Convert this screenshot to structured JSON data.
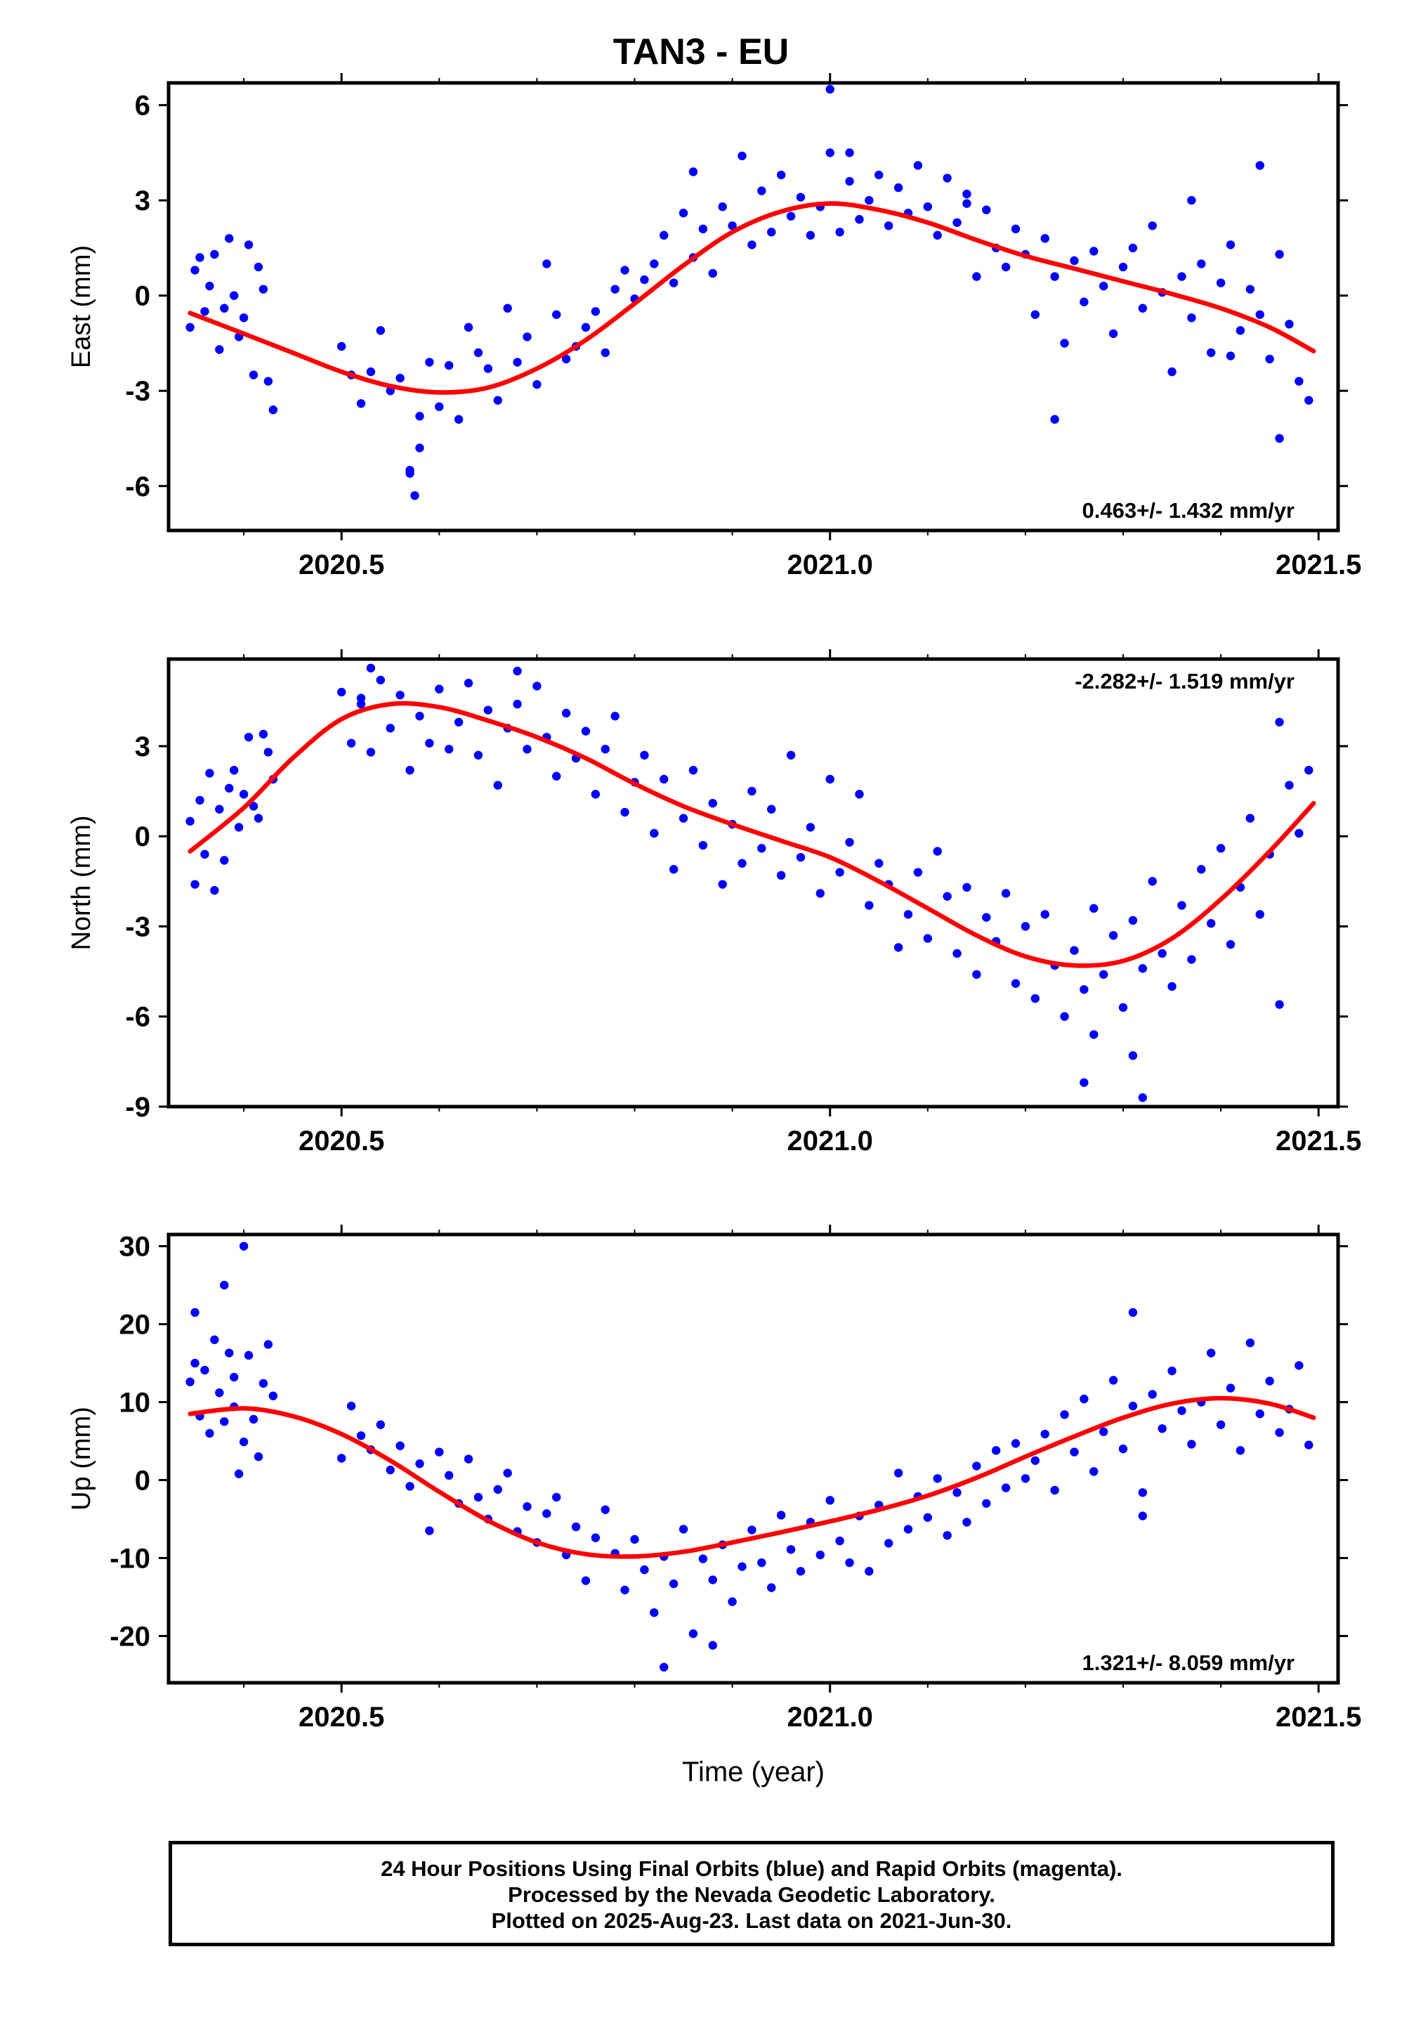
{
  "title": "TAN3 - EU",
  "footer": {
    "line1": "24 Hour Positions Using Final Orbits (blue) and Rapid Orbits (magenta).",
    "line2": "Processed by the Nevada Geodetic Laboratory.",
    "line3": "Plotted on 2025-Aug-23. Last data on 2021-Jun-30."
  },
  "colors": {
    "points": "#0000ff",
    "fit": "#ff0000",
    "frame": "#000000"
  },
  "chart_data": [
    {
      "type": "scatter",
      "ylabel": "East (mm)",
      "xlabel": "",
      "xlim": [
        2020.323,
        2021.52
      ],
      "ylim": [
        -7.4,
        6.7
      ],
      "xticks": [
        2020.5,
        2021.0,
        2021.5
      ],
      "xtick_labels": [
        "2020.5",
        "2021.0",
        "2021.5"
      ],
      "yticks": [
        6,
        3,
        0,
        -3,
        -6
      ],
      "ytick_labels": [
        "6",
        "3",
        "0",
        "-3",
        "-6"
      ],
      "annotation": "0.463+/- 1.432 mm/yr",
      "annotation_position": "bottom-right",
      "fit_x": [
        2020.345,
        2020.4,
        2020.45,
        2020.5,
        2020.55,
        2020.6,
        2020.65,
        2020.7,
        2020.75,
        2020.8,
        2020.85,
        2020.9,
        2020.95,
        2021.0,
        2021.05,
        2021.1,
        2021.15,
        2021.2,
        2021.25,
        2021.3,
        2021.35,
        2021.4,
        2021.45,
        2021.495
      ],
      "fit_y": [
        -0.55,
        -1.2,
        -1.8,
        -2.4,
        -2.85,
        -3.05,
        -2.9,
        -2.3,
        -1.4,
        -0.25,
        0.95,
        2.0,
        2.65,
        2.9,
        2.7,
        2.3,
        1.75,
        1.25,
        0.85,
        0.45,
        0.05,
        -0.4,
        -1.0,
        -1.75
      ],
      "series": [
        {
          "x": [
            2020.345,
            2020.35,
            2020.355,
            2020.36,
            2020.365,
            2020.37,
            2020.375,
            2020.38,
            2020.385,
            2020.39,
            2020.395,
            2020.4,
            2020.405,
            2020.41,
            2020.415,
            2020.42,
            2020.425,
            2020.43,
            2020.5,
            2020.51,
            2020.52,
            2020.53,
            2020.54,
            2020.55,
            2020.56,
            2020.57,
            2020.58,
            2020.59,
            2020.6,
            2020.61,
            2020.62,
            2020.63,
            2020.64,
            2020.65,
            2020.66,
            2020.67,
            2020.68,
            2020.69,
            2020.7,
            2020.71,
            2020.72,
            2020.73,
            2020.74,
            2020.75,
            2020.76,
            2020.77,
            2020.78,
            2020.79,
            2020.8,
            2020.81,
            2020.82,
            2020.83,
            2020.84,
            2020.85,
            2020.86,
            2020.87,
            2020.88,
            2020.89,
            2020.9,
            2020.91,
            2020.92,
            2020.93,
            2020.94,
            2020.95,
            2020.96,
            2020.97,
            2020.98,
            2020.99,
            2021.0,
            2021.01,
            2021.02,
            2021.03,
            2021.04,
            2021.05,
            2021.06,
            2021.07,
            2021.08,
            2021.09,
            2021.1,
            2021.11,
            2021.12,
            2021.13,
            2021.14,
            2021.15,
            2021.16,
            2021.17,
            2021.18,
            2021.19,
            2021.2,
            2021.21,
            2021.22,
            2021.23,
            2021.24,
            2021.25,
            2021.26,
            2021.27,
            2021.28,
            2021.29,
            2021.3,
            2021.31,
            2021.32,
            2021.33,
            2021.34,
            2021.35,
            2021.36,
            2021.37,
            2021.38,
            2021.39,
            2021.4,
            2021.41,
            2021.42,
            2021.43,
            2021.44,
            2021.45,
            2021.46,
            2021.47,
            2021.48,
            2021.49,
            2020.57,
            2020.575,
            2020.58,
            2020.86,
            2021.0,
            2021.02,
            2021.14,
            2021.23,
            2021.37,
            2021.41,
            2021.44,
            2021.46
          ],
          "y": [
            -1.0,
            0.8,
            1.2,
            -0.5,
            0.3,
            1.3,
            -1.7,
            -0.4,
            1.8,
            0.0,
            -1.3,
            -0.7,
            1.6,
            -2.5,
            0.9,
            0.2,
            -2.7,
            -3.6,
            -1.6,
            -2.5,
            -3.4,
            -2.4,
            -1.1,
            -3.0,
            -2.6,
            -5.5,
            -3.8,
            -2.1,
            -3.5,
            -2.2,
            -3.9,
            -1.0,
            -1.8,
            -2.3,
            -3.3,
            -0.4,
            -2.1,
            -1.3,
            -2.8,
            1.0,
            -0.6,
            -2.0,
            -1.6,
            -1.0,
            -0.5,
            -1.8,
            0.2,
            0.8,
            -0.1,
            0.5,
            1.0,
            1.9,
            0.4,
            2.6,
            1.2,
            2.1,
            0.7,
            2.8,
            2.2,
            4.4,
            1.6,
            3.3,
            2.0,
            3.8,
            2.5,
            3.1,
            1.9,
            2.8,
            4.5,
            2.0,
            3.6,
            2.4,
            3.0,
            3.8,
            2.2,
            3.4,
            2.6,
            4.1,
            2.8,
            1.9,
            3.7,
            2.3,
            3.2,
            0.6,
            2.7,
            1.5,
            0.9,
            2.1,
            1.3,
            -0.6,
            1.8,
            0.6,
            -1.5,
            1.1,
            -0.2,
            1.4,
            0.3,
            -1.2,
            0.9,
            1.5,
            -0.4,
            2.2,
            0.1,
            -2.4,
            0.6,
            -0.7,
            1.0,
            -1.8,
            0.4,
            1.6,
            -1.1,
            0.2,
            -0.6,
            -2.0,
            1.3,
            -0.9,
            -2.7,
            -3.3,
            -5.6,
            -6.3,
            -4.8,
            3.9,
            6.5,
            4.5,
            2.9,
            -3.9,
            3.0,
            -1.9,
            4.1,
            -4.5
          ]
        }
      ]
    },
    {
      "type": "scatter",
      "ylabel": "North (mm)",
      "xlabel": "",
      "xlim": [
        2020.323,
        2021.52
      ],
      "ylim": [
        -9.0,
        5.9
      ],
      "xticks": [
        2020.5,
        2021.0,
        2021.5
      ],
      "xtick_labels": [
        "2020.5",
        "2021.0",
        "2021.5"
      ],
      "yticks": [
        3,
        0,
        -3,
        -6,
        -9
      ],
      "ytick_labels": [
        "3",
        "0",
        "-3",
        "-6",
        "-9"
      ],
      "annotation": "-2.282+/- 1.519 mm/yr",
      "annotation_position": "top-right",
      "fit_x": [
        2020.345,
        2020.4,
        2020.45,
        2020.5,
        2020.55,
        2020.6,
        2020.65,
        2020.7,
        2020.75,
        2020.8,
        2020.85,
        2020.9,
        2020.95,
        2021.0,
        2021.05,
        2021.1,
        2021.15,
        2021.2,
        2021.25,
        2021.3,
        2021.35,
        2021.4,
        2021.45,
        2021.495
      ],
      "fit_y": [
        -0.5,
        0.95,
        2.6,
        3.9,
        4.4,
        4.3,
        3.85,
        3.3,
        2.6,
        1.75,
        1.0,
        0.4,
        -0.15,
        -0.7,
        -1.5,
        -2.4,
        -3.3,
        -4.0,
        -4.3,
        -4.15,
        -3.4,
        -2.1,
        -0.5,
        1.1
      ],
      "series": [
        {
          "x": [
            2020.345,
            2020.35,
            2020.355,
            2020.36,
            2020.365,
            2020.37,
            2020.375,
            2020.38,
            2020.385,
            2020.39,
            2020.395,
            2020.4,
            2020.405,
            2020.41,
            2020.415,
            2020.42,
            2020.425,
            2020.43,
            2020.5,
            2020.51,
            2020.52,
            2020.53,
            2020.54,
            2020.55,
            2020.56,
            2020.57,
            2020.58,
            2020.59,
            2020.6,
            2020.61,
            2020.62,
            2020.63,
            2020.64,
            2020.65,
            2020.66,
            2020.67,
            2020.68,
            2020.69,
            2020.7,
            2020.71,
            2020.72,
            2020.73,
            2020.74,
            2020.75,
            2020.76,
            2020.77,
            2020.78,
            2020.79,
            2020.8,
            2020.81,
            2020.82,
            2020.83,
            2020.84,
            2020.85,
            2020.86,
            2020.87,
            2020.88,
            2020.89,
            2020.9,
            2020.91,
            2020.92,
            2020.93,
            2020.94,
            2020.95,
            2020.96,
            2020.97,
            2020.98,
            2020.99,
            2021.0,
            2021.01,
            2021.02,
            2021.03,
            2021.04,
            2021.05,
            2021.06,
            2021.07,
            2021.08,
            2021.09,
            2021.1,
            2021.11,
            2021.12,
            2021.13,
            2021.14,
            2021.15,
            2021.16,
            2021.17,
            2021.18,
            2021.19,
            2021.2,
            2021.21,
            2021.22,
            2021.23,
            2021.24,
            2021.25,
            2021.26,
            2021.27,
            2021.28,
            2021.29,
            2021.3,
            2021.31,
            2021.32,
            2021.33,
            2021.34,
            2021.35,
            2021.36,
            2021.37,
            2021.38,
            2021.39,
            2021.4,
            2021.41,
            2021.42,
            2021.43,
            2021.44,
            2021.45,
            2021.46,
            2021.47,
            2021.48,
            2021.49,
            2020.52,
            2020.53,
            2020.68,
            2021.26,
            2021.27,
            2021.31,
            2021.32,
            2021.46
          ],
          "y": [
            0.5,
            -1.6,
            1.2,
            -0.6,
            2.1,
            -1.8,
            0.9,
            -0.8,
            1.6,
            2.2,
            0.3,
            1.4,
            3.3,
            1.0,
            0.6,
            3.4,
            2.8,
            1.9,
            4.8,
            3.1,
            4.6,
            2.8,
            5.2,
            3.6,
            4.7,
            2.2,
            4.0,
            3.1,
            4.9,
            2.9,
            3.8,
            5.1,
            2.7,
            4.2,
            1.7,
            3.6,
            4.4,
            2.9,
            5.0,
            3.3,
            2.0,
            4.1,
            2.6,
            3.5,
            1.4,
            2.9,
            4.0,
            0.8,
            1.8,
            2.7,
            0.1,
            1.9,
            -1.1,
            0.6,
            2.2,
            -0.3,
            1.1,
            -1.6,
            0.4,
            -0.9,
            1.5,
            -0.4,
            0.9,
            -1.3,
            2.7,
            -0.7,
            0.3,
            -1.9,
            1.9,
            -1.2,
            -0.2,
            1.4,
            -2.3,
            -0.9,
            -1.6,
            -3.7,
            -2.6,
            -1.2,
            -3.4,
            -0.5,
            -2.0,
            -3.9,
            -1.7,
            -4.6,
            -2.7,
            -3.5,
            -1.9,
            -4.9,
            -3.0,
            -5.4,
            -2.6,
            -4.3,
            -6.0,
            -3.8,
            -5.1,
            -2.4,
            -4.6,
            -3.3,
            -5.7,
            -2.8,
            -4.4,
            -1.5,
            -3.9,
            -5.0,
            -2.3,
            -4.1,
            -1.1,
            -2.9,
            -0.4,
            -3.6,
            -1.7,
            0.6,
            -2.6,
            -0.6,
            3.8,
            1.7,
            0.1,
            2.2,
            4.4,
            5.6,
            5.5,
            -8.2,
            -6.6,
            -7.3,
            -8.7,
            -5.6
          ]
        }
      ]
    },
    {
      "type": "scatter",
      "ylabel": "Up (mm)",
      "xlabel": "Time (year)",
      "xlim": [
        2020.323,
        2021.52
      ],
      "ylim": [
        -26.0,
        31.5
      ],
      "xticks": [
        2020.5,
        2021.0,
        2021.5
      ],
      "xtick_labels": [
        "2020.5",
        "2021.0",
        "2021.5"
      ],
      "yticks": [
        30,
        20,
        10,
        0,
        -10,
        -20
      ],
      "ytick_labels": [
        "30",
        "20",
        "10",
        "0",
        "-10",
        "-20"
      ],
      "annotation": "1.321+/- 8.059 mm/yr",
      "annotation_position": "bottom-right",
      "fit_x": [
        2020.345,
        2020.4,
        2020.45,
        2020.5,
        2020.55,
        2020.6,
        2020.65,
        2020.7,
        2020.75,
        2020.8,
        2020.85,
        2020.9,
        2020.95,
        2021.0,
        2021.05,
        2021.1,
        2021.15,
        2021.2,
        2021.25,
        2021.3,
        2021.35,
        2021.4,
        2021.45,
        2021.495
      ],
      "fit_y": [
        8.5,
        9.2,
        8.2,
        5.9,
        2.5,
        -1.5,
        -5.2,
        -8.0,
        -9.5,
        -9.8,
        -9.2,
        -8.0,
        -6.7,
        -5.3,
        -3.8,
        -2.0,
        0.3,
        3.0,
        5.6,
        8.0,
        9.8,
        10.5,
        9.8,
        8.0
      ],
      "series": [
        {
          "x": [
            2020.345,
            2020.35,
            2020.355,
            2020.36,
            2020.365,
            2020.37,
            2020.375,
            2020.38,
            2020.385,
            2020.39,
            2020.395,
            2020.4,
            2020.405,
            2020.41,
            2020.415,
            2020.42,
            2020.425,
            2020.43,
            2020.5,
            2020.51,
            2020.52,
            2020.53,
            2020.54,
            2020.55,
            2020.56,
            2020.57,
            2020.58,
            2020.59,
            2020.6,
            2020.61,
            2020.62,
            2020.63,
            2020.64,
            2020.65,
            2020.66,
            2020.67,
            2020.68,
            2020.69,
            2020.7,
            2020.71,
            2020.72,
            2020.73,
            2020.74,
            2020.75,
            2020.76,
            2020.77,
            2020.78,
            2020.79,
            2020.8,
            2020.81,
            2020.82,
            2020.83,
            2020.84,
            2020.85,
            2020.86,
            2020.87,
            2020.88,
            2020.89,
            2020.9,
            2020.91,
            2020.92,
            2020.93,
            2020.94,
            2020.95,
            2020.96,
            2020.97,
            2020.98,
            2020.99,
            2021.0,
            2021.01,
            2021.02,
            2021.03,
            2021.04,
            2021.05,
            2021.06,
            2021.07,
            2021.08,
            2021.09,
            2021.1,
            2021.11,
            2021.12,
            2021.13,
            2021.14,
            2021.15,
            2021.16,
            2021.17,
            2021.18,
            2021.19,
            2021.2,
            2021.21,
            2021.22,
            2021.23,
            2021.24,
            2021.25,
            2021.26,
            2021.27,
            2021.28,
            2021.29,
            2021.3,
            2021.31,
            2021.32,
            2021.33,
            2021.34,
            2021.35,
            2021.36,
            2021.37,
            2021.38,
            2021.39,
            2021.4,
            2021.41,
            2021.42,
            2021.43,
            2021.44,
            2021.45,
            2021.46,
            2021.47,
            2021.48,
            2021.49,
            2020.35,
            2020.38,
            2020.39,
            2020.4,
            2020.83,
            2020.88,
            2021.31,
            2021.32
          ],
          "y": [
            12.6,
            15.0,
            8.2,
            14.1,
            6.0,
            18.0,
            11.2,
            7.5,
            16.3,
            9.4,
            0.8,
            4.9,
            16.0,
            7.8,
            3.0,
            12.4,
            17.4,
            10.8,
            2.8,
            9.5,
            5.7,
            3.9,
            7.1,
            1.3,
            4.4,
            -0.8,
            2.1,
            -6.5,
            3.6,
            0.6,
            -3.0,
            2.7,
            -2.2,
            -5.0,
            -1.2,
            0.9,
            -6.6,
            -3.4,
            -8.0,
            -4.3,
            -2.2,
            -9.6,
            -6.0,
            -12.9,
            -7.4,
            -3.8,
            -9.4,
            -14.1,
            -7.6,
            -11.5,
            -17.0,
            -9.8,
            -13.3,
            -6.3,
            -19.7,
            -10.1,
            -12.8,
            -8.3,
            -15.6,
            -11.1,
            -6.4,
            -10.6,
            -13.8,
            -4.5,
            -8.9,
            -11.7,
            -5.4,
            -9.6,
            -2.6,
            -7.8,
            -10.6,
            -4.6,
            -11.7,
            -3.2,
            -8.1,
            0.9,
            -6.3,
            -2.1,
            -4.8,
            0.2,
            -7.1,
            -1.6,
            -5.4,
            1.8,
            -3.0,
            3.8,
            -1.0,
            4.7,
            0.2,
            2.5,
            5.9,
            -1.3,
            8.4,
            3.6,
            10.4,
            1.1,
            6.2,
            12.8,
            4.0,
            9.5,
            -1.6,
            11.0,
            6.6,
            14.0,
            8.9,
            4.6,
            10.0,
            16.3,
            7.1,
            11.8,
            3.8,
            17.6,
            8.5,
            12.7,
            6.1,
            9.1,
            14.7,
            4.5,
            21.5,
            25.0,
            13.2,
            30.0,
            -24.0,
            -21.2,
            21.5,
            -4.6
          ]
        }
      ]
    }
  ]
}
